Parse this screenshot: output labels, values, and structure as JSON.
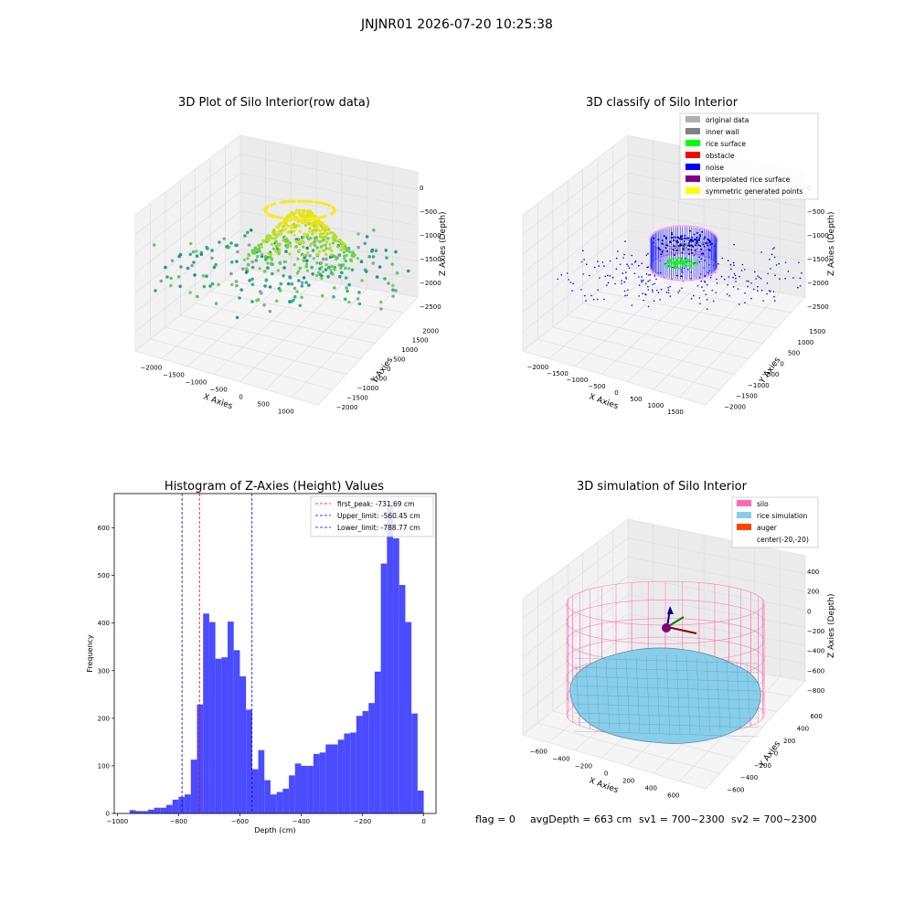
{
  "suptitle": "JNJNR01 2026-07-20 10:25:38",
  "chart_data": [
    {
      "type": "scatter",
      "title": "3D Plot of Silo Interior(row data)",
      "xlabel": "X Axies",
      "ylabel": "Y Axies",
      "zlabel": "Z Axies (Depth)",
      "xticks": [
        "−2000",
        "−1500",
        "−1000",
        "−500",
        "0",
        "500",
        "1000"
      ],
      "yticks": [
        "−2000",
        "−1500",
        "−1000",
        "−500",
        "0",
        "500",
        "1000",
        "1500",
        "2000"
      ],
      "zticks": [
        "0",
        "−500",
        "−1000",
        "−1500",
        "−2000",
        "−2500"
      ],
      "xlim": [
        -2200,
        1200
      ],
      "ylim": [
        -2100,
        2100
      ],
      "zlim": [
        -2600,
        100
      ],
      "colormap": "viridis",
      "grid": true
    },
    {
      "type": "scatter",
      "title": "3D classify of Silo Interior",
      "xlabel": "X Axies",
      "ylabel": "Y Axies",
      "zlabel": "Z Axies (Depth)",
      "xticks": [
        "−2000",
        "−1500",
        "−1000",
        "−500",
        "0",
        "500",
        "1000",
        "1500"
      ],
      "yticks": [
        "−2000",
        "−1500",
        "−1000",
        "−500",
        "0",
        "500",
        "1000",
        "1500"
      ],
      "zticks": [
        "0",
        "−500",
        "−1000",
        "−1500",
        "−2000",
        "−2500"
      ],
      "xlim": [
        -2200,
        1600
      ],
      "ylim": [
        -2100,
        1700
      ],
      "zlim": [
        -2700,
        100
      ],
      "grid": true,
      "legend": [
        {
          "label": "original data",
          "color": "#b0b0b0"
        },
        {
          "label": "inner wall",
          "color": "#808080"
        },
        {
          "label": "rice surface",
          "color": "#00ff00"
        },
        {
          "label": "obstacle",
          "color": "#ff0000"
        },
        {
          "label": "noise",
          "color": "#0000ff"
        },
        {
          "label": "interpolated rice surface",
          "color": "#800080"
        },
        {
          "label": "symmetric generated points",
          "color": "#ffff00"
        }
      ],
      "legend_loc": "upper-right"
    },
    {
      "type": "bar",
      "title": "Histogram of Z-Axies (Height) Values",
      "xlabel": "Depth (cm)",
      "ylabel": "Frequency",
      "bin_width": 20,
      "bins_start": [
        -960,
        -940,
        -920,
        -900,
        -880,
        -860,
        -840,
        -820,
        -800,
        -780,
        -760,
        -740,
        -720,
        -700,
        -680,
        -660,
        -640,
        -620,
        -600,
        -580,
        -560,
        -540,
        -520,
        -500,
        -480,
        -460,
        -440,
        -420,
        -400,
        -380,
        -360,
        -340,
        -320,
        -300,
        -280,
        -260,
        -240,
        -220,
        -200,
        -180,
        -160,
        -140,
        -120,
        -100,
        -80,
        -60,
        -40,
        -20
      ],
      "values": [
        7,
        5,
        5,
        8,
        12,
        12,
        18,
        29,
        35,
        40,
        113,
        229,
        420,
        402,
        325,
        328,
        403,
        343,
        288,
        218,
        93,
        133,
        70,
        40,
        45,
        52,
        80,
        105,
        100,
        100,
        125,
        128,
        145,
        145,
        155,
        168,
        170,
        205,
        215,
        232,
        298,
        525,
        648,
        578,
        480,
        402,
        210,
        48
      ],
      "xlim": [
        -1010,
        40
      ],
      "ylim": [
        0,
        672
      ],
      "xticks": [
        -1000,
        -800,
        -600,
        -400,
        -200,
        0
      ],
      "xtick_labels": [
        "−1000",
        "−800",
        "−600",
        "−400",
        "−200",
        "0"
      ],
      "yticks": [
        0,
        100,
        200,
        300,
        400,
        500,
        600
      ],
      "bar_color": "#4b4bff",
      "vlines": [
        {
          "label": "first_peak: -731.69 cm",
          "x": -731.69,
          "color": "#ff0000"
        },
        {
          "label": "Upper_limit: -560.45 cm",
          "x": -560.45,
          "color": "#0000ff"
        },
        {
          "label": "Lower_limit: -788.77 cm",
          "x": -788.77,
          "color": "#0000ff"
        }
      ],
      "legend_loc": "upper-right"
    },
    {
      "type": "surface",
      "title": "3D simulation of Silo Interior",
      "xlabel": "X Axies",
      "ylabel": "Y Axies",
      "zlabel": "Z Axies (Depth)",
      "xticks": [
        "−600",
        "−400",
        "−200",
        "0",
        "200",
        "400",
        "600"
      ],
      "yticks": [
        "−600",
        "−400",
        "−200",
        "0",
        "200",
        "400",
        "600"
      ],
      "zticks": [
        "400",
        "200",
        "0",
        "−200",
        "−400",
        "−600",
        "−800"
      ],
      "xlim": [
        -700,
        700
      ],
      "ylim": [
        -700,
        700
      ],
      "zlim": [
        -900,
        450
      ],
      "grid": true,
      "legend": [
        {
          "label": "silo",
          "color": "#ff69b4"
        },
        {
          "label": "rice simulation",
          "color": "#87ceeb"
        },
        {
          "label": "auger",
          "color": "#ff4500"
        },
        {
          "label": "center(-20,-20)",
          "color": ""
        }
      ],
      "legend_loc": "upper-right"
    }
  ],
  "footer": {
    "flag": "flag = 0",
    "avg": "avgDepth = 663 cm",
    "sv1": "sv1 = 700~2300",
    "sv2": "sv2 = 700~2300"
  }
}
